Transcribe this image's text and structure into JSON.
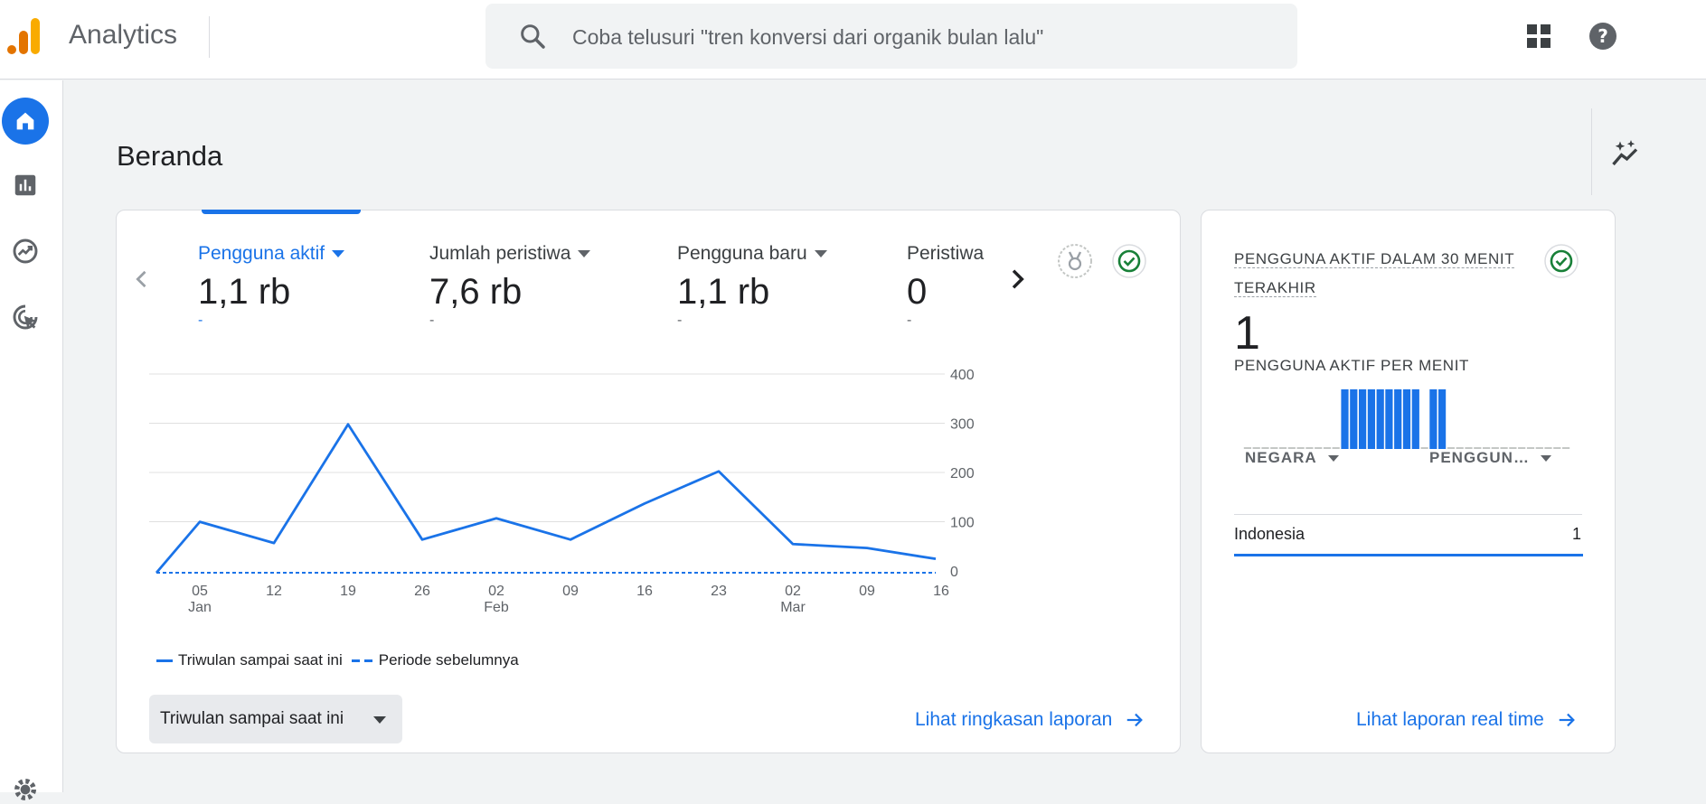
{
  "app": {
    "title": "Analytics"
  },
  "search": {
    "placeholder": "Coba telusuri \"tren konversi dari organik bulan lalu\""
  },
  "page": {
    "title": "Beranda"
  },
  "metrics": [
    {
      "label": "Pengguna aktif",
      "value": "1,1 rb",
      "delta": "-",
      "selected": true
    },
    {
      "label": "Jumlah peristiwa",
      "value": "7,6 rb",
      "delta": "-",
      "selected": false
    },
    {
      "label": "Pengguna baru",
      "value": "1,1 rb",
      "delta": "-",
      "selected": false
    },
    {
      "label": "Peristiwa",
      "value": "0",
      "delta": "-",
      "selected": false
    }
  ],
  "chart_data": {
    "type": "line",
    "x_ticks": [
      {
        "day": "05",
        "month": "Jan"
      },
      {
        "day": "12",
        "month": ""
      },
      {
        "day": "19",
        "month": ""
      },
      {
        "day": "26",
        "month": ""
      },
      {
        "day": "02",
        "month": "Feb"
      },
      {
        "day": "09",
        "month": ""
      },
      {
        "day": "16",
        "month": ""
      },
      {
        "day": "23",
        "month": ""
      },
      {
        "day": "02",
        "month": "Mar"
      },
      {
        "day": "09",
        "month": ""
      },
      {
        "day": "16",
        "month": ""
      }
    ],
    "y_ticks": [
      "400",
      "300",
      "200",
      "100",
      "0"
    ],
    "ylim": [
      0,
      400
    ],
    "series": [
      {
        "name": "Triwulan sampai saat ini",
        "style": "solid",
        "color": "#1a73e8",
        "points": [
          [
            0,
            0
          ],
          [
            1,
            103
          ],
          [
            2,
            60
          ],
          [
            3,
            300
          ],
          [
            4,
            67
          ],
          [
            5,
            110
          ],
          [
            6,
            67
          ],
          [
            7,
            140
          ],
          [
            8,
            205
          ],
          [
            9,
            58
          ],
          [
            10,
            50
          ],
          [
            11,
            28
          ]
        ]
      },
      {
        "name": "Periode sebelumnya",
        "style": "dashed",
        "color": "#1a73e8",
        "points": [
          [
            0,
            0
          ],
          [
            11,
            0
          ]
        ]
      }
    ],
    "grid": true
  },
  "range_select": {
    "label": "Triwulan sampai saat ini"
  },
  "links": {
    "summary": "Lihat ringkasan laporan",
    "realtime": "Lihat laporan real time"
  },
  "realtime": {
    "title_line1": "PENGGUNA AKTIF DALAM 30 MENIT",
    "title_line2": "TERAKHIR",
    "count": "1",
    "subtitle": "PENGGUNA AKTIF PER MENIT",
    "bars": [
      0,
      0,
      0,
      0,
      0,
      0,
      0,
      0,
      0,
      0,
      0,
      1,
      1,
      1,
      1,
      1,
      1,
      1,
      1,
      1,
      0,
      1,
      1,
      0,
      0,
      0,
      0,
      0,
      0,
      0,
      0,
      0,
      0,
      0,
      0,
      0,
      0
    ],
    "col_country": "NEGARA",
    "col_users": "PENGGUN…",
    "rows": [
      {
        "country": "Indonesia",
        "value": "1"
      }
    ]
  },
  "colors": {
    "accent": "#1a73e8",
    "success": "#188038"
  }
}
